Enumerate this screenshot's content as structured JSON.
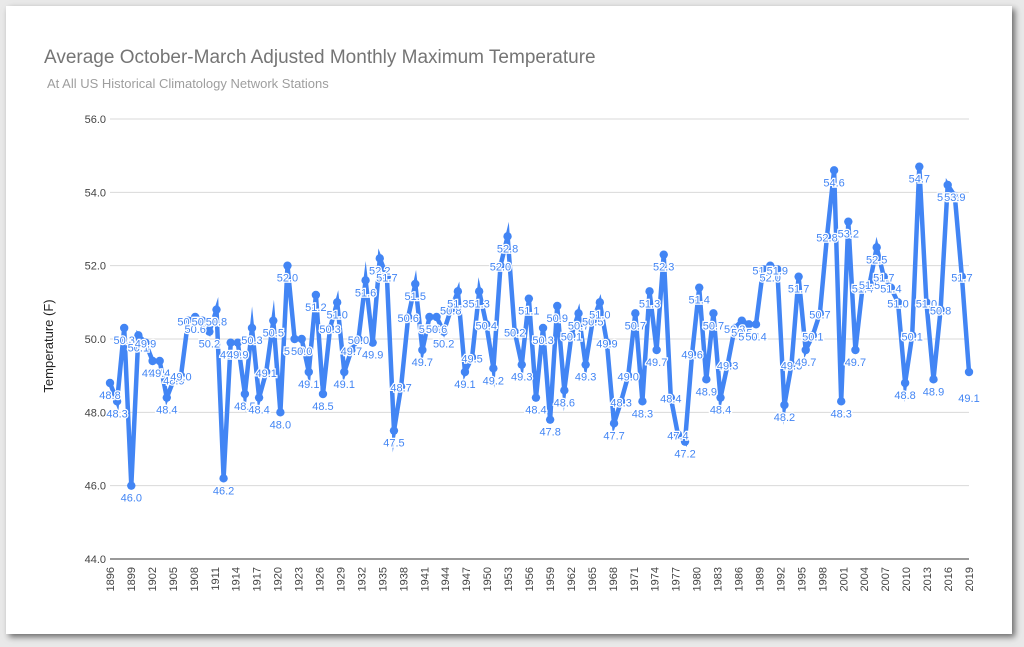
{
  "chart_data": {
    "type": "line",
    "title": "Average October-March Adjusted Monthly Maximum Temperature",
    "subtitle": "At All US Historical Climatology Network Stations",
    "xlabel": "",
    "ylabel": "Temperature (F)",
    "ylim": [
      44,
      56
    ],
    "y_ticks": [
      "44.0",
      "46.0",
      "48.0",
      "50.0",
      "52.0",
      "54.0",
      "56.0"
    ],
    "x_ticks": [
      "1896",
      "1899",
      "1902",
      "1905",
      "1908",
      "1911",
      "1914",
      "1917",
      "1920",
      "1923",
      "1926",
      "1929",
      "1932",
      "1935",
      "1938",
      "1941",
      "1944",
      "1947",
      "1950",
      "1953",
      "1956",
      "1959",
      "1962",
      "1965",
      "1968",
      "1971",
      "1974",
      "1977",
      "1980",
      "1983",
      "1986",
      "1989",
      "1992",
      "1995",
      "1998",
      "2001",
      "2004",
      "2007",
      "2010",
      "2013",
      "2016",
      "2019"
    ],
    "x_start": 1896,
    "x_end": 2019,
    "series_color": "#4285f4",
    "series": [
      {
        "name": "Temperature",
        "values": [
          48.8,
          48.3,
          50.3,
          46.0,
          50.1,
          49.9,
          49.4,
          49.4,
          48.4,
          48.9,
          49.0,
          50.5,
          50.6,
          50.5,
          50.2,
          50.8,
          46.2,
          49.9,
          49.9,
          48.5,
          50.3,
          48.4,
          49.1,
          50.5,
          48.0,
          52.0,
          50.0,
          50.0,
          49.1,
          51.2,
          48.5,
          50.3,
          51.0,
          49.1,
          49.7,
          50.0,
          51.6,
          49.9,
          52.2,
          51.7,
          47.5,
          48.7,
          50.6,
          51.5,
          49.7,
          50.6,
          50.6,
          50.2,
          50.8,
          51.3,
          49.1,
          49.5,
          51.3,
          50.4,
          49.2,
          52.0,
          52.8,
          50.2,
          49.3,
          51.1,
          48.4,
          50.3,
          47.8,
          50.9,
          48.6,
          50.1,
          50.7,
          49.3,
          50.5,
          51.0,
          49.9,
          47.7,
          48.3,
          49.0,
          50.7,
          48.3,
          51.3,
          49.7,
          52.3,
          48.4,
          47.4,
          47.2,
          49.6,
          51.4,
          48.9,
          50.7,
          48.4,
          49.3,
          50.3,
          50.5,
          50.4,
          50.4,
          51.9,
          52.0,
          51.9,
          48.2,
          49.3,
          51.7,
          49.7,
          50.1,
          50.7,
          52.8,
          54.6,
          48.3,
          53.2,
          49.7,
          51.4,
          51.5,
          52.5,
          51.7,
          51.4,
          51.0,
          48.8,
          50.1,
          54.7,
          51.0,
          48.9,
          50.8,
          54.2,
          53.9,
          51.7,
          49.1
        ]
      }
    ]
  }
}
